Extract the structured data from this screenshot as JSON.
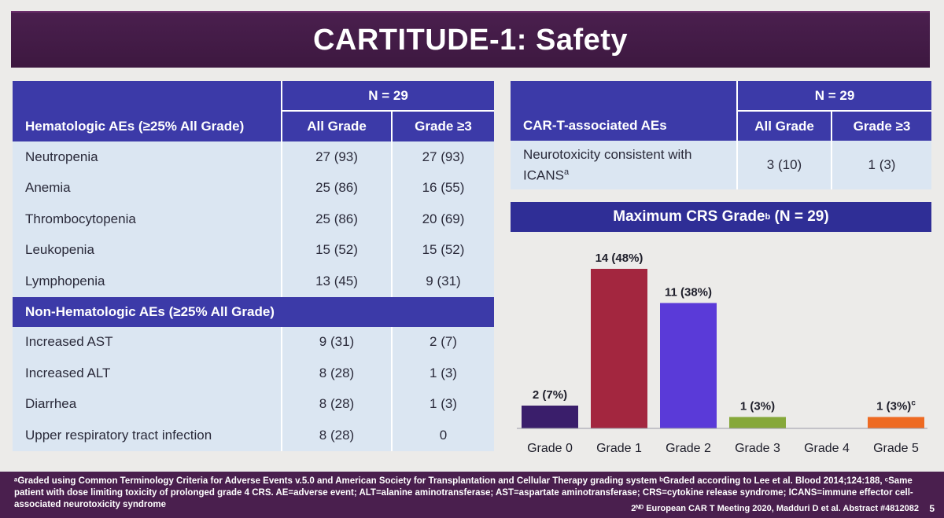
{
  "title": "CARTITUDE-1: Safety",
  "left_table": {
    "n_label": "N = 29",
    "section1_label": "Hematologic AEs (≥25% All Grade)",
    "col_all": "All Grade",
    "col_g3": "Grade ≥3",
    "hematologic": [
      {
        "name": "Neutropenia",
        "all": "27 (93)",
        "g3": "27 (93)"
      },
      {
        "name": "Anemia",
        "all": "25 (86)",
        "g3": "16 (55)"
      },
      {
        "name": "Thrombocytopenia",
        "all": "25 (86)",
        "g3": "20 (69)"
      },
      {
        "name": "Leukopenia",
        "all": "15 (52)",
        "g3": "15 (52)"
      },
      {
        "name": "Lymphopenia",
        "all": "13 (45)",
        "g3": "9 (31)"
      }
    ],
    "section2_label": "Non-Hematologic AEs (≥25% All Grade)",
    "non_hematologic": [
      {
        "name": "Increased AST",
        "all": "9 (31)",
        "g3": "2 (7)"
      },
      {
        "name": "Increased ALT",
        "all": "8 (28)",
        "g3": "1 (3)"
      },
      {
        "name": "Diarrhea",
        "all": "8 (28)",
        "g3": "1 (3)"
      },
      {
        "name": "Upper respiratory tract infection",
        "all": "8 (28)",
        "g3": "0"
      }
    ]
  },
  "right_table": {
    "n_label": "N = 29",
    "section_label": "CAR-T-associated AEs",
    "col_all": "All Grade",
    "col_g3": "Grade ≥3",
    "row_name_line1": "Neurotoxicity consistent with",
    "row_name_line2": "ICANS",
    "row_name_sup": "a",
    "row_all": "3 (10)",
    "row_g3": "1 (3)"
  },
  "crs_header": {
    "prefix": "Maximum CRS Grade",
    "sup": "b",
    "suffix": " (N = 29)"
  },
  "chart_data": {
    "type": "bar",
    "title": "Maximum CRS Grade (N = 29)",
    "categories": [
      "Grade 0",
      "Grade 1",
      "Grade 2",
      "Grade 3",
      "Grade 4",
      "Grade 5"
    ],
    "values": [
      2,
      14,
      11,
      1,
      0,
      1
    ],
    "data_labels": [
      "2 (7%)",
      "14 (48%)",
      "11 (38%)",
      "1 (3%)",
      "",
      "1 (3%)"
    ],
    "label_superscripts": [
      "",
      "",
      "",
      "",
      "",
      "c"
    ],
    "colors": [
      "#3a1e6b",
      "#a3263f",
      "#5a3ad8",
      "#86a83a",
      "#86a83a",
      "#ee6a22"
    ],
    "ylim": [
      0,
      14
    ],
    "xlabel": "",
    "ylabel": ""
  },
  "footnote": "ᵃGraded using Common Terminology Criteria for Adverse Events v.5.0 and American Society for Transplantation and Cellular Therapy grading system ᵇGraded according to Lee et al. Blood 2014;124:188, ᶜSame patient with dose limiting toxicity of prolonged grade 4 CRS. AE=adverse event; ALT=alanine aminotransferase; AST=aspartate aminotransferase; CRS=cytokine release syndrome; ICANS=immune effector cell-associated neurotoxicity syndrome",
  "citation": "2ᴺᴰ European CAR T Meeting 2020, Madduri D et al. Abstract #4812082",
  "page_number": "5"
}
